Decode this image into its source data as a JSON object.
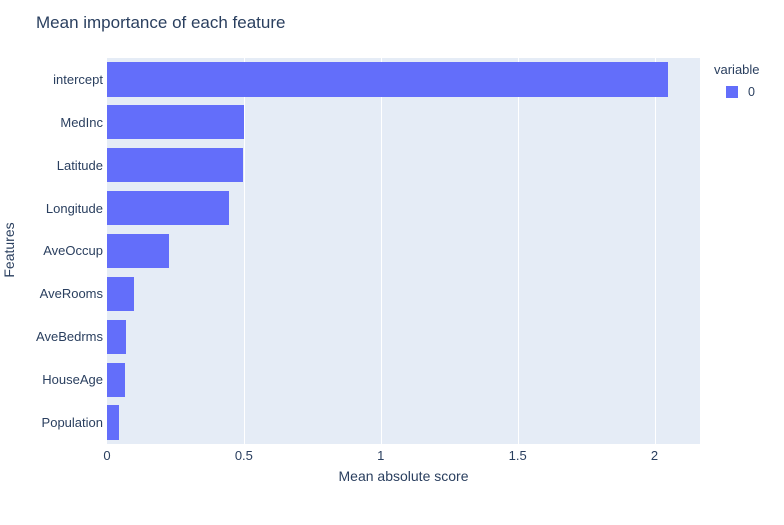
{
  "chart_data": {
    "type": "bar",
    "orientation": "horizontal",
    "title": "Mean importance of each feature",
    "xlabel": "Mean absolute score",
    "ylabel": "Features",
    "categories": [
      "intercept",
      "MedInc",
      "Latitude",
      "Longitude",
      "AveOccup",
      "AveRooms",
      "AveBedrms",
      "HouseAge",
      "Population"
    ],
    "values": [
      2.05,
      0.5,
      0.497,
      0.446,
      0.226,
      0.098,
      0.071,
      0.066,
      0.044
    ],
    "xlim": [
      0,
      2.166
    ],
    "xticks": {
      "values": [
        0,
        0.5,
        1,
        1.5,
        2
      ],
      "labels": [
        "0",
        "0.5",
        "1",
        "1.5",
        "2"
      ]
    },
    "grid": true,
    "legend": {
      "title": "variable",
      "position": "top-right",
      "items": [
        {
          "label": "0",
          "color": "#636EFA"
        }
      ]
    }
  },
  "colors": {
    "bar": "#636EFA",
    "plot_background": "#E5ECF6",
    "gridline": "#FFFFFF",
    "text": "#2A3F5F",
    "paper": "#FFFFFF"
  }
}
